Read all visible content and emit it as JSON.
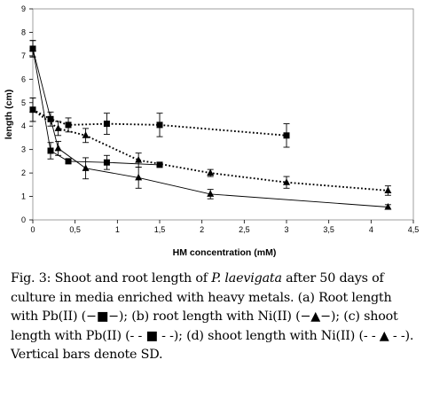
{
  "chart_data": {
    "type": "line",
    "xlabel": "HM concentration (mM)",
    "ylabel": "length (cm)",
    "xlim": [
      0,
      4.5
    ],
    "ylim": [
      0,
      9
    ],
    "x_ticks": [
      "0",
      "0,5",
      "1",
      "1,5",
      "2",
      "2,5",
      "3",
      "3,5",
      "4",
      "4,5"
    ],
    "y_ticks": [
      "0",
      "1",
      "2",
      "3",
      "4",
      "5",
      "6",
      "7",
      "8",
      "9"
    ],
    "grid": false,
    "legend": "none",
    "series": [
      {
        "key": "root-pb",
        "marker": "square",
        "line": "solid",
        "x": [
          0,
          0.21,
          0.42,
          0.875,
          1.5
        ],
        "y": [
          7.3,
          2.95,
          2.5,
          2.45,
          2.35
        ],
        "err": [
          0.35,
          0.35,
          0.1,
          0.3,
          0.1
        ]
      },
      {
        "key": "root-ni",
        "marker": "triangle",
        "line": "solid",
        "x": [
          0,
          0.3,
          0.625,
          1.25,
          2.1,
          4.2
        ],
        "y": [
          7.3,
          3.05,
          2.2,
          1.8,
          1.1,
          0.55
        ],
        "err": [
          0.35,
          0.3,
          0.45,
          0.45,
          0.2,
          0.1
        ]
      },
      {
        "key": "shoot-pb",
        "marker": "square",
        "line": "dotted",
        "x": [
          0,
          0.21,
          0.42,
          0.875,
          1.5,
          3.0
        ],
        "y": [
          4.7,
          4.3,
          4.05,
          4.1,
          4.05,
          3.6
        ],
        "err": [
          0.5,
          0.3,
          0.3,
          0.45,
          0.5,
          0.5
        ]
      },
      {
        "key": "shoot-ni",
        "marker": "triangle",
        "line": "dotted",
        "x": [
          0,
          0.3,
          0.625,
          1.25,
          2.1,
          3.0,
          4.2
        ],
        "y": [
          4.7,
          3.9,
          3.6,
          2.55,
          2.0,
          1.6,
          1.25
        ],
        "err": [
          0.5,
          0.3,
          0.3,
          0.3,
          0.15,
          0.25,
          0.2
        ]
      }
    ]
  },
  "caption": {
    "p1": "Fig. 3: Shoot and root length of ",
    "species": "P. laevigata",
    "p2": " after 50 days of culture in media enriched with heavy metals. (a) Root length with Pb(II) (−■−); (b) root length with Ni(II) (−▲−); (c) shoot length with Pb(II) (- - ■ - -); (d) shoot length with Ni(II) (- - ▲ - -). Vertical bars denote SD."
  }
}
